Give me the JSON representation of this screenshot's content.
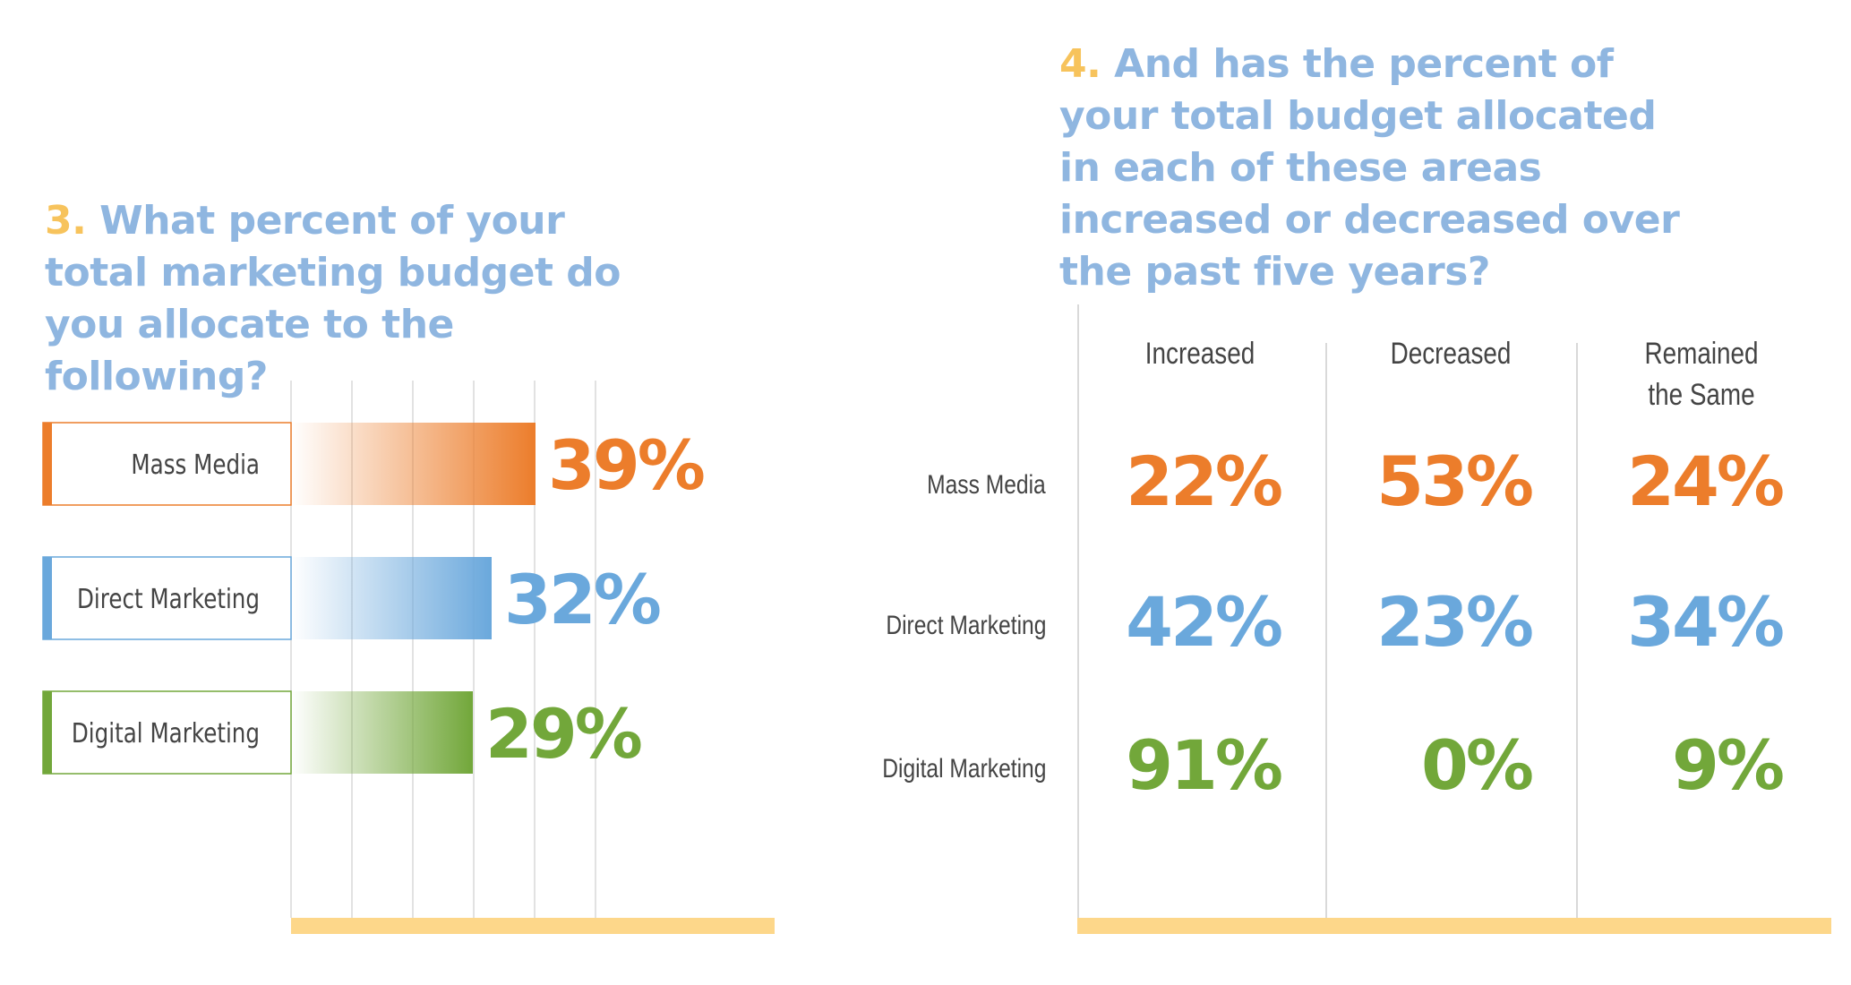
{
  "q3": {
    "number": "3.",
    "question": "What percent of your total marketing budget do you allocate to the following?"
  },
  "q4": {
    "number": "4.",
    "question": "And has the percent of your total budget allocated in each of these areas increased or decreased over the past five years?"
  },
  "chart_data": [
    {
      "type": "bar",
      "orientation": "horizontal",
      "categories": [
        "Mass Media",
        "Direct Marketing",
        "Digital Marketing"
      ],
      "values": [
        39,
        32,
        29
      ],
      "value_labels": [
        "39%",
        "32%",
        "29%"
      ],
      "colors": [
        "#ec7d2b",
        "#6aa8dc",
        "#72a73a"
      ],
      "grid": true,
      "xlim": [
        0,
        80
      ]
    },
    {
      "type": "table",
      "columns": [
        "Increased",
        "Decreased",
        "Remained\nthe Same"
      ],
      "rows": [
        {
          "label": "Mass Media",
          "values": [
            "22%",
            "53%",
            "24%"
          ],
          "color": "#ec7d2b"
        },
        {
          "label": "Direct Marketing",
          "values": [
            "42%",
            "23%",
            "34%"
          ],
          "color": "#6aa8dc"
        },
        {
          "label": "Digital Marketing",
          "values": [
            "91%",
            "0%",
            "9%"
          ],
          "color": "#72a73a"
        }
      ]
    }
  ],
  "accent": {
    "axis_bar": "#fdd78a",
    "gridline": "#d9d9d9",
    "title": "#8fb6e0",
    "number": "#f7c35c"
  }
}
